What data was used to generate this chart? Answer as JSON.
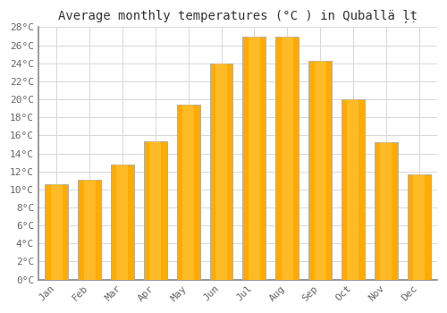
{
  "title": "Average monthly temperatures (°C ) in Quballä ļṭ",
  "months": [
    "Jan",
    "Feb",
    "Mar",
    "Apr",
    "May",
    "Jun",
    "Jul",
    "Aug",
    "Sep",
    "Oct",
    "Nov",
    "Dec"
  ],
  "values": [
    10.6,
    11.1,
    12.8,
    15.3,
    19.4,
    24.0,
    27.0,
    27.0,
    24.3,
    20.0,
    15.2,
    11.7
  ],
  "ylim": [
    0,
    28
  ],
  "yticks": [
    0,
    2,
    4,
    6,
    8,
    10,
    12,
    14,
    16,
    18,
    20,
    22,
    24,
    26,
    28
  ],
  "bar_color": "#FFA500",
  "bar_edge_color": "#aaaaaa",
  "background_color": "#ffffff",
  "plot_bg_color": "#ffffff",
  "grid_color": "#d8d8d8",
  "title_fontsize": 10,
  "tick_fontsize": 8,
  "bar_width": 0.7
}
